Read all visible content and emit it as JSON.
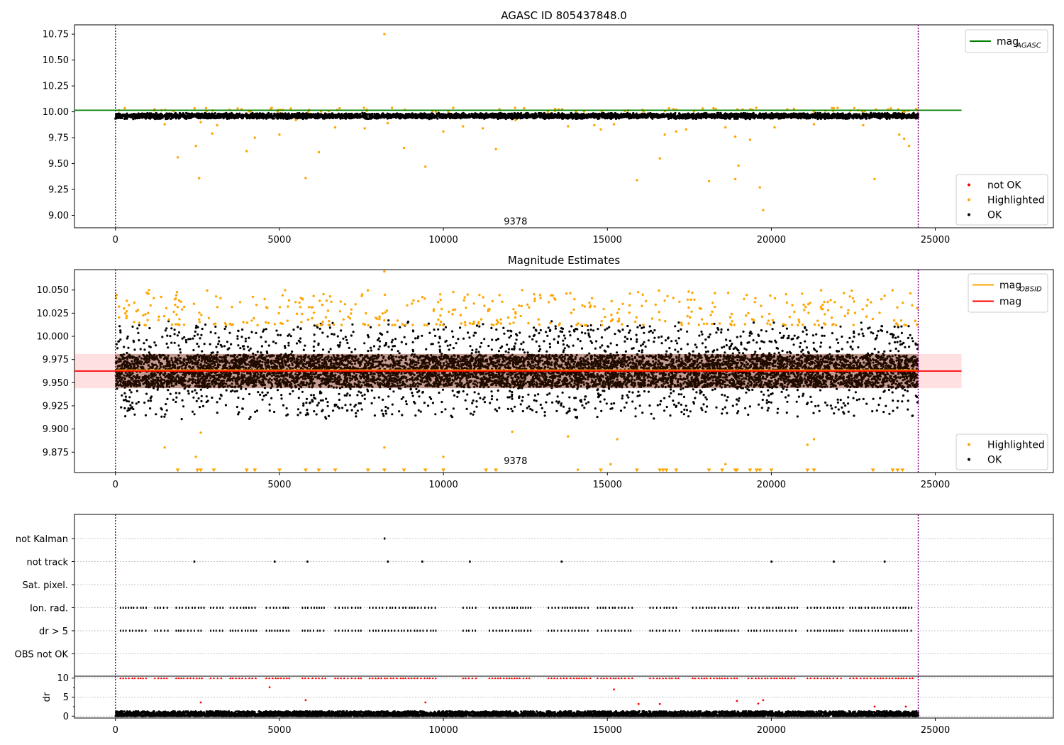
{
  "chart_data": [
    {
      "type": "scatter",
      "title": "AGASC ID 805437848.0",
      "xlabel": "",
      "ylabel": "",
      "xlim": [
        -1250,
        28600
      ],
      "ylim": [
        8.88,
        10.84
      ],
      "xticks": [
        0,
        5000,
        10000,
        15000,
        20000,
        25000
      ],
      "yticks": [
        9.0,
        9.25,
        9.5,
        9.75,
        10.0,
        10.25,
        10.5,
        10.75
      ],
      "ytick_labels": [
        "9.00",
        "9.25",
        "9.50",
        "9.75",
        "10.00",
        "10.25",
        "10.50",
        "10.75"
      ],
      "vlines": [
        0,
        24480
      ],
      "reference_line": {
        "name": "mag",
        "subscript": "AGASC",
        "value": 10.015,
        "x_range": [
          -1250,
          25800
        ],
        "color": "#008000"
      },
      "annotation": {
        "text": "9378",
        "x": 12200,
        "y": 8.91
      },
      "legend_upper": {
        "placement": "top-right",
        "entries": [
          {
            "label": "mag",
            "subscript": "AGASC",
            "color": "#008000",
            "kind": "line"
          }
        ]
      },
      "legend_lower": {
        "placement": "bottom-right",
        "entries": [
          {
            "label": "not OK",
            "color": "#ff0000",
            "kind": "dot"
          },
          {
            "label": "Highlighted",
            "color": "#ffa500",
            "kind": "dot"
          },
          {
            "label": "OK",
            "color": "#000000",
            "kind": "dot"
          }
        ]
      },
      "series": [
        {
          "name": "OK",
          "color": "#000000",
          "x_range": [
            0,
            24480
          ],
          "band": [
            9.93,
            9.99
          ],
          "n": 5000,
          "seed": 11
        },
        {
          "name": "Highlighted",
          "color": "#ffa500",
          "points": [
            [
              1900,
              9.56
            ],
            [
              2450,
              9.67
            ],
            [
              2550,
              9.36
            ],
            [
              2950,
              9.79
            ],
            [
              4000,
              9.62
            ],
            [
              4250,
              9.75
            ],
            [
              5000,
              9.78
            ],
            [
              5800,
              9.36
            ],
            [
              6200,
              9.61
            ],
            [
              8200,
              10.75
            ],
            [
              8800,
              9.65
            ],
            [
              9450,
              9.47
            ],
            [
              10000,
              9.81
            ],
            [
              11600,
              9.64
            ],
            [
              14800,
              9.83
            ],
            [
              15900,
              9.34
            ],
            [
              16600,
              9.55
            ],
            [
              16750,
              9.78
            ],
            [
              17100,
              9.81
            ],
            [
              18100,
              9.33
            ],
            [
              18900,
              9.35
            ],
            [
              18900,
              9.76
            ],
            [
              19000,
              9.48
            ],
            [
              19350,
              9.73
            ],
            [
              19650,
              9.27
            ],
            [
              19750,
              9.05
            ],
            [
              20100,
              9.85
            ],
            [
              23150,
              9.35
            ],
            [
              23900,
              9.78
            ],
            [
              24050,
              9.74
            ],
            [
              24200,
              9.67
            ],
            [
              1500,
              9.88
            ],
            [
              2600,
              9.9
            ],
            [
              3100,
              9.87
            ],
            [
              5500,
              9.92
            ],
            [
              6700,
              9.85
            ],
            [
              7600,
              9.84
            ],
            [
              8300,
              9.89
            ],
            [
              10600,
              9.86
            ],
            [
              11200,
              9.84
            ],
            [
              12200,
              9.92
            ],
            [
              13800,
              9.86
            ],
            [
              14600,
              9.87
            ],
            [
              15200,
              9.88
            ],
            [
              17400,
              9.83
            ],
            [
              18600,
              9.85
            ],
            [
              21300,
              9.88
            ],
            [
              22800,
              9.87
            ]
          ],
          "top_n": 90,
          "seed": 13,
          "top_band": [
            10.0,
            10.04
          ]
        }
      ]
    },
    {
      "type": "scatter",
      "title": "Magnitude Estimates",
      "xlabel": "",
      "ylabel": "",
      "xlim": [
        -1250,
        28600
      ],
      "ylim": [
        9.853,
        10.072
      ],
      "xticks": [
        0,
        5000,
        10000,
        15000,
        20000,
        25000
      ],
      "yticks": [
        9.875,
        9.9,
        9.925,
        9.95,
        9.975,
        10.0,
        10.025,
        10.05
      ],
      "ytick_labels": [
        "9.875",
        "9.900",
        "9.925",
        "9.950",
        "9.975",
        "10.000",
        "10.025",
        "10.050"
      ],
      "vlines": [
        0,
        24480
      ],
      "band": {
        "low": 9.944,
        "high": 9.981,
        "x_range": [
          -1250,
          25800
        ],
        "color": "#ff0000",
        "opacity": 0.12
      },
      "lines": [
        {
          "name": "mag",
          "subscript": "OBSID",
          "value": 9.9635,
          "x_range": [
            0,
            24480
          ],
          "color": "#ffa500"
        },
        {
          "name": "mag",
          "value": 9.9625,
          "x_range": [
            -1250,
            25800
          ],
          "color": "#ff0000"
        }
      ],
      "annotation": {
        "text": "9378",
        "x": 12200,
        "y": 9.862
      },
      "legend_upper": {
        "placement": "top-right",
        "entries": [
          {
            "label": "mag",
            "subscript": "OBSID",
            "color": "#ffa500",
            "kind": "line"
          },
          {
            "label": "mag",
            "color": "#ff0000",
            "kind": "line"
          }
        ]
      },
      "legend_lower": {
        "placement": "bottom-right",
        "entries": [
          {
            "label": "Highlighted",
            "color": "#ffa500",
            "kind": "dot"
          },
          {
            "label": "OK",
            "color": "#000000",
            "kind": "dot"
          }
        ]
      },
      "series": [
        {
          "name": "OK",
          "color": "#000000",
          "x_range": [
            0,
            24480
          ],
          "core": [
            9.945,
            9.98
          ],
          "spread": [
            9.915,
            10.012
          ],
          "n": 9000,
          "seed": 21
        },
        {
          "name": "Highlighted",
          "color": "#ffa500",
          "x_range": [
            0,
            24480
          ],
          "band_top": [
            10.012,
            10.05
          ],
          "n": 420,
          "seed": 23,
          "points": [
            [
              8200,
              10.07
            ],
            [
              1500,
              9.88
            ],
            [
              2450,
              9.87
            ],
            [
              2600,
              9.896
            ],
            [
              10000,
              9.87
            ],
            [
              8200,
              9.88
            ],
            [
              12100,
              9.897
            ],
            [
              13800,
              9.892
            ],
            [
              15300,
              9.889
            ],
            [
              21100,
              9.883
            ],
            [
              21300,
              9.889
            ],
            [
              15100,
              9.862
            ],
            [
              18600,
              9.862
            ],
            [
              14100,
              9.856
            ]
          ]
        },
        {
          "name": "Highlighted-clipped",
          "color": "#ffa500",
          "marker": "triangle-down",
          "y": 9.855,
          "x": [
            1900,
            2500,
            2600,
            3000,
            4000,
            4250,
            5000,
            5800,
            6200,
            6700,
            7700,
            8200,
            8800,
            9450,
            10000,
            11300,
            11600,
            14800,
            15900,
            16600,
            16700,
            16800,
            17100,
            18100,
            18500,
            18900,
            18950,
            19350,
            19550,
            19650,
            20000,
            21100,
            21300,
            23100,
            23700,
            23850,
            24000
          ]
        }
      ]
    },
    {
      "type": "scatter",
      "title": "",
      "xlabel": "",
      "ylabel": "",
      "xlim": [
        -1250,
        28600
      ],
      "flag_rows": [
        "not Kalman",
        "not track",
        "Sat. pixel.",
        "Ion. rad.",
        "dr > 5",
        "OBS not OK"
      ],
      "vlines": [
        0,
        24480
      ],
      "flags": {
        "not Kalman": [
          8200
        ],
        "not track": [
          2400,
          4850,
          5850,
          8300,
          9350,
          10800,
          13600,
          20000,
          21900,
          23450
        ],
        "Sat. pixel.": [],
        "Ion. rad.": {
          "segments": [
            [
              150,
              1000
            ],
            [
              1200,
              1600
            ],
            [
              1850,
              2700
            ],
            [
              2900,
              3300
            ],
            [
              3500,
              4300
            ],
            [
              4600,
              5300
            ],
            [
              5700,
              6400
            ],
            [
              6700,
              7500
            ],
            [
              7750,
              9800
            ],
            [
              10600,
              11000
            ],
            [
              11400,
              12700
            ],
            [
              13200,
              14500
            ],
            [
              14700,
              15800
            ],
            [
              16300,
              17200
            ],
            [
              17600,
              19000
            ],
            [
              19300,
              20800
            ],
            [
              21100,
              22200
            ],
            [
              22400,
              24350
            ]
          ]
        },
        "dr > 5": {
          "segments": [
            [
              150,
              1000
            ],
            [
              1200,
              1600
            ],
            [
              1850,
              2700
            ],
            [
              2900,
              3300
            ],
            [
              3500,
              4300
            ],
            [
              4600,
              5300
            ],
            [
              5700,
              6400
            ],
            [
              6700,
              7500
            ],
            [
              7750,
              9800
            ],
            [
              10600,
              11000
            ],
            [
              11400,
              12700
            ],
            [
              13200,
              14500
            ],
            [
              14700,
              15800
            ],
            [
              16300,
              17200
            ],
            [
              17600,
              19000
            ],
            [
              19300,
              20800
            ],
            [
              21100,
              22200
            ],
            [
              22400,
              24350
            ]
          ]
        },
        "OBS not OK": []
      }
    },
    {
      "type": "scatter",
      "title": "",
      "xlabel": "",
      "ylabel": "dr",
      "xlim": [
        -1250,
        28600
      ],
      "ylim": [
        -0.5,
        10.5
      ],
      "xticks": [
        0,
        5000,
        10000,
        15000,
        20000,
        25000
      ],
      "yticks": [
        0,
        5,
        10
      ],
      "ytick_labels": [
        "0",
        "5",
        "10"
      ],
      "vlines": [
        0,
        24480
      ],
      "series": [
        {
          "name": "OK",
          "color": "#000000",
          "x_range": [
            0,
            24480
          ],
          "band": [
            0,
            1.3
          ],
          "n": 6000,
          "seed": 31
        },
        {
          "name": "not OK",
          "color": "#ff0000",
          "marker": "triangle-up",
          "y": 10,
          "segments_ref": "dr > 5"
        },
        {
          "name": "not OK scattered",
          "color": "#ff0000",
          "points": [
            [
              4700,
              7.6
            ],
            [
              2600,
              3.6
            ],
            [
              5800,
              4.2
            ],
            [
              9450,
              3.6
            ],
            [
              15200,
              7.0
            ],
            [
              15950,
              3.2
            ],
            [
              16600,
              3.2
            ],
            [
              18950,
              4.0
            ],
            [
              19600,
              3.3
            ],
            [
              19750,
              4.2
            ],
            [
              23150,
              2.5
            ],
            [
              24100,
              2.5
            ]
          ]
        }
      ]
    }
  ],
  "x_tick_labels": [
    "0",
    "5000",
    "10000",
    "15000",
    "20000",
    "25000"
  ]
}
